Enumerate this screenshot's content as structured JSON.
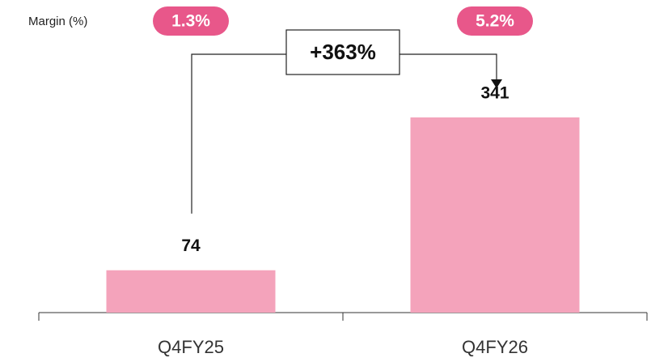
{
  "chart_data": {
    "type": "bar",
    "categories": [
      "Q4FY25",
      "Q4FY26"
    ],
    "values": [
      74,
      341
    ],
    "color": "#f4a3bb",
    "margin_label": "Margin (%)",
    "margins": {
      "values": [
        1.3,
        5.2
      ],
      "value_labels": [
        "1.3%",
        "5.2%"
      ],
      "color": "#e8578a"
    },
    "annotation": "+363%"
  }
}
